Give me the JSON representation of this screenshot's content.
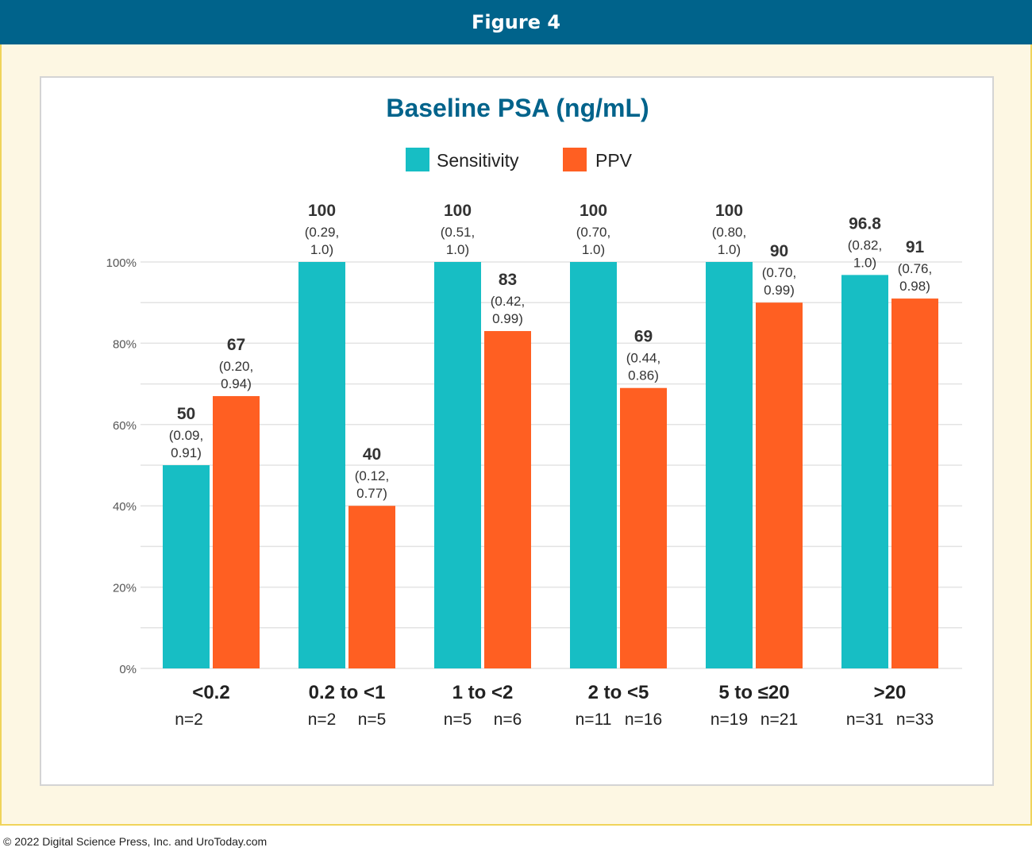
{
  "header": {
    "title": "Figure 4"
  },
  "footer": {
    "copyright": "© 2022 Digital Science Press, Inc. and UroToday.com"
  },
  "colors": {
    "header_bg": "#00638b",
    "title": "#00638b",
    "sensitivity": "#17bec4",
    "ppv": "#ff5f22",
    "frame_bg": "#fdf7e3",
    "frame_border": "#f0d45a"
  },
  "legend": {
    "position": "top-center",
    "items": [
      "Sensitivity",
      "PPV"
    ]
  },
  "chart_data": {
    "type": "bar",
    "title": "Baseline PSA (ng/mL)",
    "xlabel": "",
    "ylabel": "",
    "ylim": [
      0,
      100
    ],
    "grid": true,
    "y_ticks": [
      {
        "value": 0,
        "label": "0%"
      },
      {
        "value": 20,
        "label": "20%"
      },
      {
        "value": 40,
        "label": "40%"
      },
      {
        "value": 60,
        "label": "60%"
      },
      {
        "value": 80,
        "label": "80%"
      },
      {
        "value": 100,
        "label": "100%"
      }
    ],
    "categories": [
      "<0.2",
      "0.2 to <1",
      "1 to <2",
      "2 to <5",
      "5 to ≤20",
      ">20"
    ],
    "series": [
      {
        "name": "Sensitivity",
        "color": "#17bec4",
        "values": [
          50,
          100,
          100,
          100,
          100,
          96.8
        ],
        "value_labels": [
          "50",
          "100",
          "100",
          "100",
          "100",
          "96.8"
        ],
        "ci_labels": [
          [
            "(0.09,",
            "0.91)"
          ],
          [
            "(0.29,",
            "1.0)"
          ],
          [
            "(0.51,",
            "1.0)"
          ],
          [
            "(0.70,",
            "1.0)"
          ],
          [
            "(0.80,",
            "1.0)"
          ],
          [
            "(0.82,",
            "1.0)"
          ]
        ],
        "n_labels": [
          "n=2",
          "n=2",
          "n=5",
          "n=11",
          "n=19",
          "n=31"
        ]
      },
      {
        "name": "PPV",
        "color": "#ff5f22",
        "values": [
          67,
          40,
          83,
          69,
          90,
          91
        ],
        "value_labels": [
          "67",
          "40",
          "83",
          "69",
          "90",
          "91"
        ],
        "ci_labels": [
          [
            "(0.20,",
            "0.94)"
          ],
          [
            "(0.12,",
            "0.77)"
          ],
          [
            "(0.42,",
            "0.99)"
          ],
          [
            "(0.44,",
            "0.86)"
          ],
          [
            "(0.70,",
            "0.99)"
          ],
          [
            "(0.76,",
            "0.98)"
          ]
        ],
        "n_labels": [
          "",
          "n=5",
          "n=6",
          "n=16",
          "n=21",
          "n=33"
        ]
      }
    ]
  }
}
